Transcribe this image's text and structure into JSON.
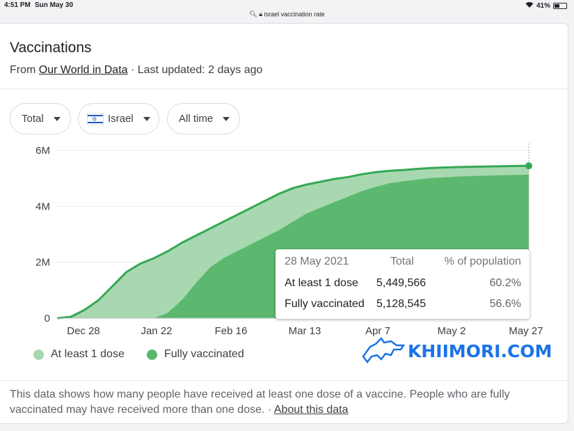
{
  "statusbar": {
    "time": "4:51 PM",
    "date": "Sun May 30",
    "battery": "41%"
  },
  "browser": {
    "url": "israel vaccination rate"
  },
  "card": {
    "title": "Vaccinations",
    "source_prefix": "From ",
    "source_link": "Our World in Data",
    "updated": " · Last updated: 2 days ago"
  },
  "filters": {
    "metric": "Total",
    "country": "Israel",
    "range": "All time"
  },
  "tooltip": {
    "date": "28 May 2021",
    "col_total": "Total",
    "col_pct": "% of population",
    "rows": [
      {
        "label": "At least 1 dose",
        "total": "5,449,566",
        "pct": "60.2%"
      },
      {
        "label": "Fully vaccinated",
        "total": "5,128,545",
        "pct": "56.6%"
      }
    ]
  },
  "legend": {
    "dose1": "At least 1 dose",
    "full": "Fully vaccinated"
  },
  "footnote": {
    "text": "This data shows how many people have received at least one dose of a vaccine. People who are fully vaccinated may have received more than one dose.",
    "sep": " · ",
    "link": "About this data"
  },
  "watermark": "KHIIMORI.COM",
  "colors": {
    "dose1": "#a8d8b0",
    "full": "#5cb86e",
    "line": "#34a853"
  },
  "chart_data": {
    "type": "area",
    "y_ticks": [
      "0",
      "2M",
      "4M",
      "6M"
    ],
    "ylim": [
      0,
      6000000
    ],
    "x_labels": [
      "Dec 28",
      "Jan 22",
      "Feb 16",
      "Mar 13",
      "Apr 7",
      "May 2",
      "May 27"
    ],
    "x": [
      "Dec 19",
      "Dec 22",
      "Dec 25",
      "Dec 28",
      "Dec 31",
      "Jan 4",
      "Jan 8",
      "Jan 12",
      "Jan 16",
      "Jan 20",
      "Jan 24",
      "Jan 28",
      "Feb 1",
      "Feb 5",
      "Feb 9",
      "Feb 13",
      "Feb 17",
      "Feb 21",
      "Feb 25",
      "Mar 1",
      "Mar 5",
      "Mar 9",
      "Mar 15",
      "Mar 21",
      "Mar 27",
      "Apr 2",
      "Apr 8",
      "Apr 14",
      "Apr 20",
      "Apr 26",
      "May 2",
      "May 8",
      "May 14",
      "May 20",
      "May 28"
    ],
    "series": [
      {
        "name": "At least 1 dose",
        "values": [
          0,
          50000,
          300000,
          650000,
          1150000,
          1650000,
          1950000,
          2150000,
          2400000,
          2700000,
          2950000,
          3200000,
          3450000,
          3700000,
          3950000,
          4200000,
          4450000,
          4650000,
          4780000,
          4880000,
          4980000,
          5050000,
          5150000,
          5220000,
          5270000,
          5300000,
          5340000,
          5370000,
          5390000,
          5405000,
          5415000,
          5425000,
          5435000,
          5443000,
          5449566
        ]
      },
      {
        "name": "Fully vaccinated",
        "values": [
          0,
          0,
          0,
          0,
          0,
          0,
          0,
          0,
          200000,
          650000,
          1250000,
          1800000,
          2150000,
          2400000,
          2650000,
          2900000,
          3150000,
          3450000,
          3750000,
          3950000,
          4150000,
          4350000,
          4550000,
          4700000,
          4830000,
          4900000,
          4960000,
          5010000,
          5040000,
          5070000,
          5085000,
          5100000,
          5112000,
          5120000,
          5128545
        ]
      }
    ]
  }
}
